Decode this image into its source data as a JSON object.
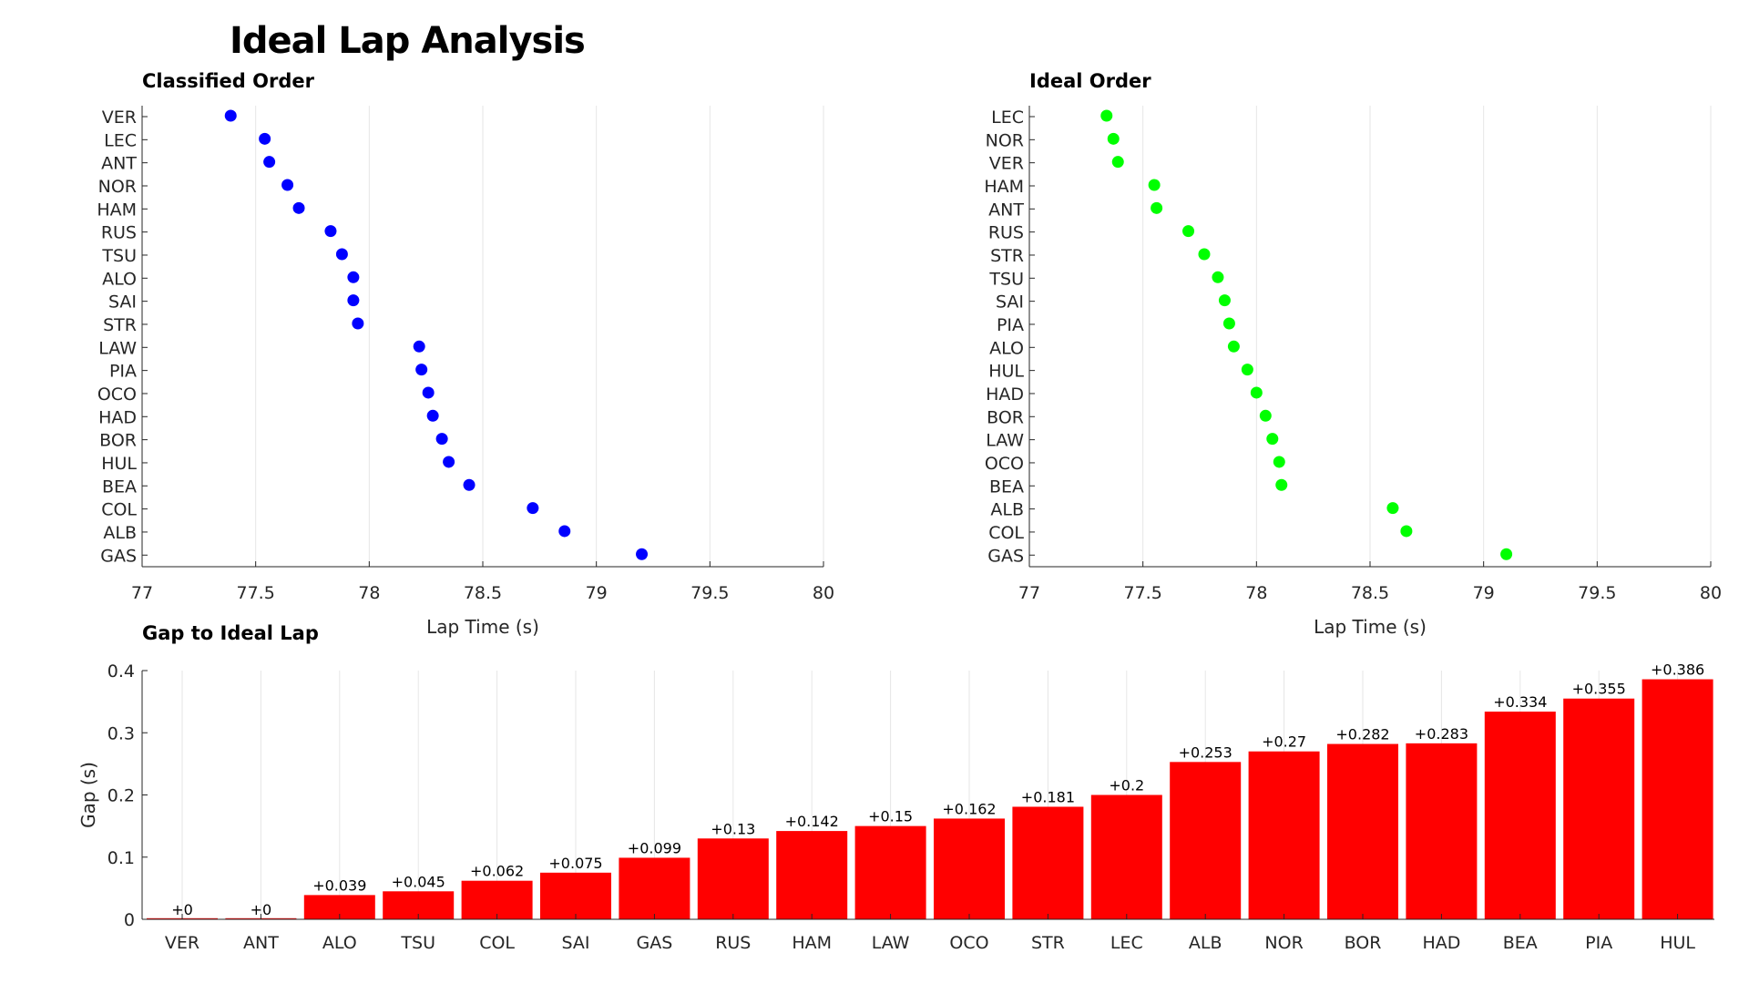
{
  "title": "Ideal Lap Analysis",
  "chart_data": [
    {
      "type": "scatter",
      "title": "Classified Order",
      "xlabel": "Lap Time (s)",
      "ylabel": "",
      "xlim": [
        77,
        80
      ],
      "xticks": [
        "77",
        "77.5",
        "78",
        "78.5",
        "79",
        "79.5",
        "80"
      ],
      "grid": "x",
      "color": "#0000ff",
      "categories": [
        "VER",
        "LEC",
        "ANT",
        "NOR",
        "HAM",
        "RUS",
        "TSU",
        "ALO",
        "SAI",
        "STR",
        "LAW",
        "PIA",
        "OCO",
        "HAD",
        "BOR",
        "HUL",
        "BEA",
        "COL",
        "ALB",
        "GAS"
      ],
      "values": [
        77.39,
        77.54,
        77.56,
        77.64,
        77.69,
        77.83,
        77.88,
        77.93,
        77.93,
        77.95,
        78.22,
        78.23,
        78.26,
        78.28,
        78.32,
        78.35,
        78.44,
        78.72,
        78.86,
        79.2
      ]
    },
    {
      "type": "scatter",
      "title": "Ideal Order",
      "xlabel": "Lap Time (s)",
      "ylabel": "",
      "xlim": [
        77,
        80
      ],
      "xticks": [
        "77",
        "77.5",
        "78",
        "78.5",
        "79",
        "79.5",
        "80"
      ],
      "grid": "x",
      "color": "#00ff00",
      "categories": [
        "LEC",
        "NOR",
        "VER",
        "HAM",
        "ANT",
        "RUS",
        "STR",
        "TSU",
        "SAI",
        "PIA",
        "ALO",
        "HUL",
        "HAD",
        "BOR",
        "LAW",
        "OCO",
        "BEA",
        "ALB",
        "COL",
        "GAS"
      ],
      "values": [
        77.34,
        77.37,
        77.39,
        77.55,
        77.56,
        77.7,
        77.77,
        77.83,
        77.86,
        77.88,
        77.9,
        77.96,
        78.0,
        78.04,
        78.07,
        78.1,
        78.11,
        78.6,
        78.66,
        79.1
      ]
    },
    {
      "type": "bar",
      "title": "Gap to Ideal Lap",
      "xlabel": "",
      "ylabel": "Gap (s)",
      "ylim": [
        0,
        0.4
      ],
      "yticks": [
        "0",
        "0.1",
        "0.2",
        "0.3",
        "0.4"
      ],
      "grid": "x",
      "color": "#ff0000",
      "categories": [
        "VER",
        "ANT",
        "ALO",
        "TSU",
        "COL",
        "SAI",
        "GAS",
        "RUS",
        "HAM",
        "LAW",
        "OCO",
        "STR",
        "LEC",
        "ALB",
        "NOR",
        "BOR",
        "HAD",
        "BEA",
        "PIA",
        "HUL"
      ],
      "values": [
        0,
        0,
        0.039,
        0.045,
        0.062,
        0.075,
        0.099,
        0.13,
        0.142,
        0.15,
        0.162,
        0.181,
        0.2,
        0.253,
        0.27,
        0.282,
        0.283,
        0.334,
        0.355,
        0.386
      ],
      "data_labels": [
        "+0",
        "+0",
        "+0.039",
        "+0.045",
        "+0.062",
        "+0.075",
        "+0.099",
        "+0.13",
        "+0.142",
        "+0.15",
        "+0.162",
        "+0.181",
        "+0.2",
        "+0.253",
        "+0.27",
        "+0.282",
        "+0.283",
        "+0.334",
        "+0.355",
        "+0.386"
      ]
    }
  ]
}
